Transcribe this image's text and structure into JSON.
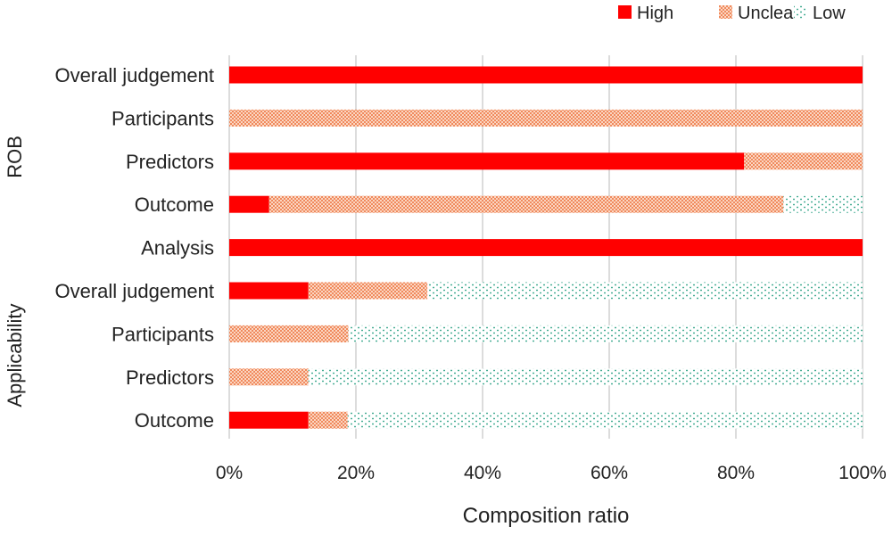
{
  "chart_data": {
    "type": "bar",
    "orientation": "horizontal",
    "stacked": true,
    "xlabel": "Composition ratio",
    "xlim": [
      0,
      100
    ],
    "x_ticks": [
      "0%",
      "20%",
      "40%",
      "60%",
      "80%",
      "100%"
    ],
    "grid": "vertical",
    "legend_position": "top-right",
    "groups": [
      {
        "label": "ROB",
        "categories": [
          "Overall judgement",
          "Participants",
          "Predictors",
          "Outcome",
          "Analysis"
        ]
      },
      {
        "label": "Applicability",
        "categories": [
          "Overall judgement",
          "Participants",
          "Predictors",
          "Outcome"
        ]
      }
    ],
    "categories": [
      "Overall judgement",
      "Participants",
      "Predictors",
      "Outcome",
      "Analysis",
      "Overall judgement",
      "Participants",
      "Predictors",
      "Outcome"
    ],
    "series": [
      {
        "name": "High",
        "color": "#ff0000",
        "pattern": "solid",
        "values": [
          100,
          0,
          81.3,
          6.3,
          100,
          12.5,
          0,
          0,
          12.5
        ]
      },
      {
        "name": "Unclear",
        "color": "#f4a07a",
        "pattern": "crosshatch",
        "values": [
          0,
          100,
          18.7,
          81.2,
          0,
          18.8,
          18.8,
          12.5,
          6.2
        ]
      },
      {
        "name": "Low",
        "color": "#1a9a7a",
        "pattern": "dots",
        "values": [
          0,
          0,
          0,
          12.5,
          0,
          68.7,
          81.2,
          87.5,
          81.3
        ]
      }
    ]
  }
}
